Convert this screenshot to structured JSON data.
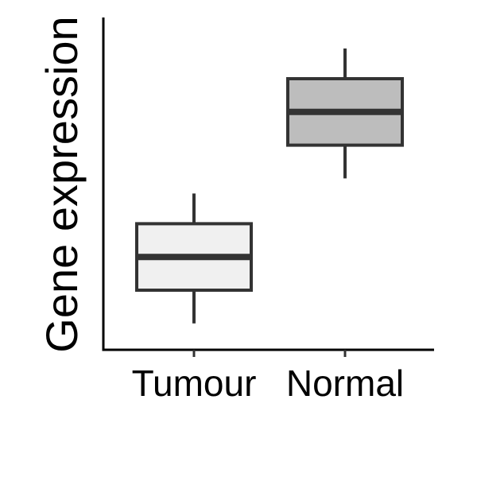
{
  "chart_data": {
    "type": "boxplot",
    "title": "",
    "xlabel": "",
    "ylabel": "Gene expression",
    "ylim": [
      0,
      10
    ],
    "y_ticks_shown": false,
    "grid": false,
    "legend": "none",
    "categories": [
      "Tumour",
      "Normal"
    ],
    "boxes": [
      {
        "category": "Tumour",
        "whisker_low": 0.4,
        "q1": 1.5,
        "median": 2.6,
        "q3": 3.7,
        "whisker_high": 4.7,
        "fill": "#f0f0f0"
      },
      {
        "category": "Normal",
        "whisker_low": 5.2,
        "q1": 6.3,
        "median": 7.4,
        "q3": 8.5,
        "whisker_high": 9.5,
        "fill": "#bdbdbd"
      }
    ],
    "stroke_color": "#333333",
    "axis_color": "#000000"
  }
}
